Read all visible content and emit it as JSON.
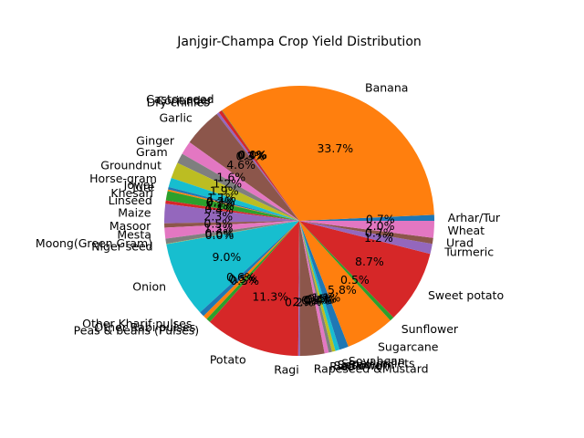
{
  "chart_data": {
    "type": "pie",
    "title": "Janjgir-Champa Crop Yield Distribution",
    "start_angle_deg": 0,
    "direction": "counterclockwise",
    "label_format": "one decimal percent",
    "slices": [
      {
        "label": "Arhar/Tur",
        "percent": 0.7,
        "color": "#1f77b4"
      },
      {
        "label": "Banana",
        "percent": 33.7,
        "color": "#ff7f0e"
      },
      {
        "label": "Castor seed",
        "percent": 0.0,
        "color": "#2ca02c"
      },
      {
        "label": "Coriander",
        "percent": 0.4,
        "color": "#d62728"
      },
      {
        "label": "Dry chillies",
        "percent": 0.3,
        "color": "#9467bd"
      },
      {
        "label": "Garlic",
        "percent": 4.6,
        "color": "#8c564b"
      },
      {
        "label": "Ginger",
        "percent": 1.6,
        "color": "#e377c2"
      },
      {
        "label": "Gram",
        "percent": 1.2,
        "color": "#7f7f7f"
      },
      {
        "label": "Groundnut",
        "percent": 1.9,
        "color": "#bcbd22"
      },
      {
        "label": "Horse-gram",
        "percent": 1.1,
        "color": "#17becf"
      },
      {
        "label": "Jowar",
        "percent": 0.3,
        "color": "#1f77b4"
      },
      {
        "label": "Jute",
        "percent": 0.2,
        "color": "#ff7f0e"
      },
      {
        "label": "Khesari",
        "percent": 1.1,
        "color": "#2ca02c"
      },
      {
        "label": "Linseed",
        "percent": 0.4,
        "color": "#d62728"
      },
      {
        "label": "Maize",
        "percent": 2.3,
        "color": "#9467bd"
      },
      {
        "label": "Masoor",
        "percent": 0.5,
        "color": "#8c564b"
      },
      {
        "label": "Mesta",
        "percent": 1.3,
        "color": "#e377c2"
      },
      {
        "label": "Moong(Green Gram)",
        "percent": 0.6,
        "color": "#7f7f7f"
      },
      {
        "label": "Niger seed",
        "percent": 0.0,
        "color": "#bcbd22"
      },
      {
        "label": "Onion",
        "percent": 9.0,
        "color": "#17becf"
      },
      {
        "label": "Other Kharif pulses",
        "percent": 0.6,
        "color": "#1f77b4"
      },
      {
        "label": "Other Rabi pulses",
        "percent": 0.5,
        "color": "#ff7f0e"
      },
      {
        "label": "Peas & beans (Pulses)",
        "percent": 0.5,
        "color": "#2ca02c"
      },
      {
        "label": "Potato",
        "percent": 11.3,
        "color": "#d62728"
      },
      {
        "label": "Ragi",
        "percent": 0.2,
        "color": "#9467bd"
      },
      {
        "label": "Rapeseed &Mustard",
        "percent": 2.9,
        "color": "#8c564b"
      },
      {
        "label": "Rice",
        "percent": 0.5,
        "color": "#e377c2"
      },
      {
        "label": "Safflower",
        "percent": 0.4,
        "color": "#7f7f7f"
      },
      {
        "label": "Sesamum",
        "percent": 0.4,
        "color": "#bcbd22"
      },
      {
        "label": "Small millets",
        "percent": 0.5,
        "color": "#17becf"
      },
      {
        "label": "Soyabean",
        "percent": 1.1,
        "color": "#1f77b4"
      },
      {
        "label": "Sugarcane",
        "percent": 5.8,
        "color": "#ff7f0e"
      },
      {
        "label": "Sunflower",
        "percent": 0.5,
        "color": "#2ca02c"
      },
      {
        "label": "Sweet potato",
        "percent": 8.7,
        "color": "#d62728"
      },
      {
        "label": "Turmeric",
        "percent": 1.2,
        "color": "#9467bd"
      },
      {
        "label": "Urad",
        "percent": 0.7,
        "color": "#8c564b"
      },
      {
        "label": "Wheat",
        "percent": 2.0,
        "color": "#e377c2"
      }
    ]
  }
}
